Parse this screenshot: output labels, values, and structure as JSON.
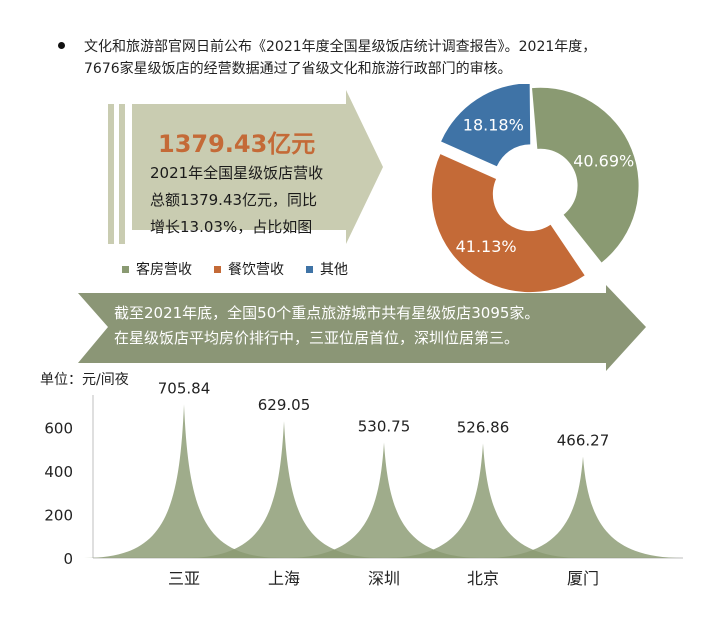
{
  "intro": {
    "line1": "文化和旅游部官网日前公布《2021年度全国星级饭店统计调查报告》。2021年度，",
    "line2": "7676家星级饭店的经营数据通过了省级文化和旅游行政部门的审核。"
  },
  "summary": {
    "headline": "1379.43亿元",
    "lines": [
      "2021年全国星级饭店营收",
      "总额1379.43亿元，同比",
      "增长13.03%，占比如图"
    ]
  },
  "middle_banner": {
    "line1": "截至2021年底，全国50个重点旅游城市共有星级饭店3095家。",
    "line2": "在星级饭店平均房价排行中，三亚位居首位，深圳位居第三。"
  },
  "colors": {
    "green": "#8a9a72",
    "orange": "#c46a37",
    "blue": "#3f73a6",
    "arrow_light": "#c9ccb1",
    "arrow_dark": "#8b9676"
  },
  "chart_data": [
    {
      "type": "pie",
      "labels": [
        "客房营收",
        "餐饮营收",
        "其他"
      ],
      "values": [
        40.69,
        41.13,
        18.18
      ],
      "value_labels": [
        "40.69%",
        "41.13%",
        "18.18%"
      ],
      "colors": [
        "#8a9a72",
        "#c46a37",
        "#3f73a6"
      ],
      "donut": true,
      "legend_position": "bottom-left"
    },
    {
      "type": "area",
      "title": "",
      "ylabel": "单位：元/间夜",
      "categories": [
        "三亚",
        "上海",
        "深圳",
        "北京",
        "厦门"
      ],
      "values": [
        705.84,
        629.05,
        530.75,
        526.86,
        466.27
      ],
      "value_labels": [
        "705.84",
        "629.05",
        "530.75",
        "526.86",
        "466.27"
      ],
      "yticks": [
        0,
        200,
        400,
        600
      ],
      "ylim": [
        0,
        800
      ],
      "grid": false,
      "color": "#8a9a72"
    }
  ]
}
